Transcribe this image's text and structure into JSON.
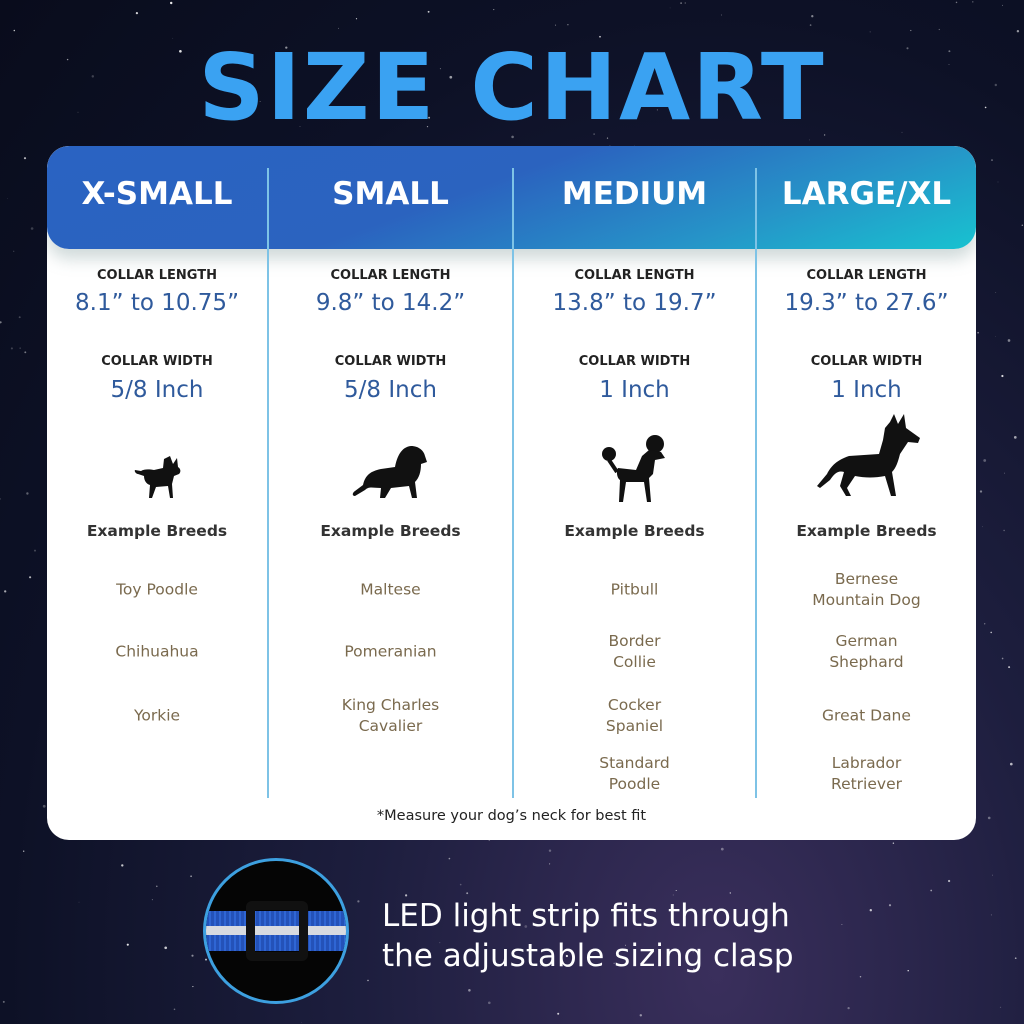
{
  "title": "SIZE CHART",
  "labels": {
    "length": "COLLAR LENGTH",
    "width": "COLLAR WIDTH",
    "breeds": "Example Breeds"
  },
  "columns": [
    {
      "name": "X-SMALL",
      "length": "8.1” to 10.75”",
      "width": "5/8 Inch",
      "dog_icon": "chihuahua-icon",
      "breeds": [
        "Toy Poodle",
        "Chihuahua",
        "Yorkie"
      ]
    },
    {
      "name": "SMALL",
      "length": "9.8” to 14.2”",
      "width": "5/8 Inch",
      "dog_icon": "cavalier-icon",
      "breeds": [
        "Maltese",
        "Pomeranian",
        "King Charles\nCavalier"
      ]
    },
    {
      "name": "MEDIUM",
      "length": "13.8” to 19.7”",
      "width": "1 Inch",
      "dog_icon": "poodle-icon",
      "breeds": [
        "Pitbull",
        "Border\nCollie",
        "Cocker\nSpaniel",
        "Standard\nPoodle"
      ]
    },
    {
      "name": "LARGE/XL",
      "length": "19.3” to 27.6”",
      "width": "1 Inch",
      "dog_icon": "shepherd-icon",
      "breeds": [
        "Bernese\nMountain Dog",
        "German\nShephard",
        "Great Dane",
        "Labrador\nRetriever"
      ]
    }
  ],
  "note": "*Measure your dog’s neck for best fit",
  "feature": {
    "line1": "LED light strip fits through",
    "line2": "the adjustable sizing clasp"
  },
  "colors": {
    "title": "#3aa2f2",
    "header": "#2a63c2",
    "value": "#2f5a9c",
    "breed": "#7a6a4e"
  }
}
